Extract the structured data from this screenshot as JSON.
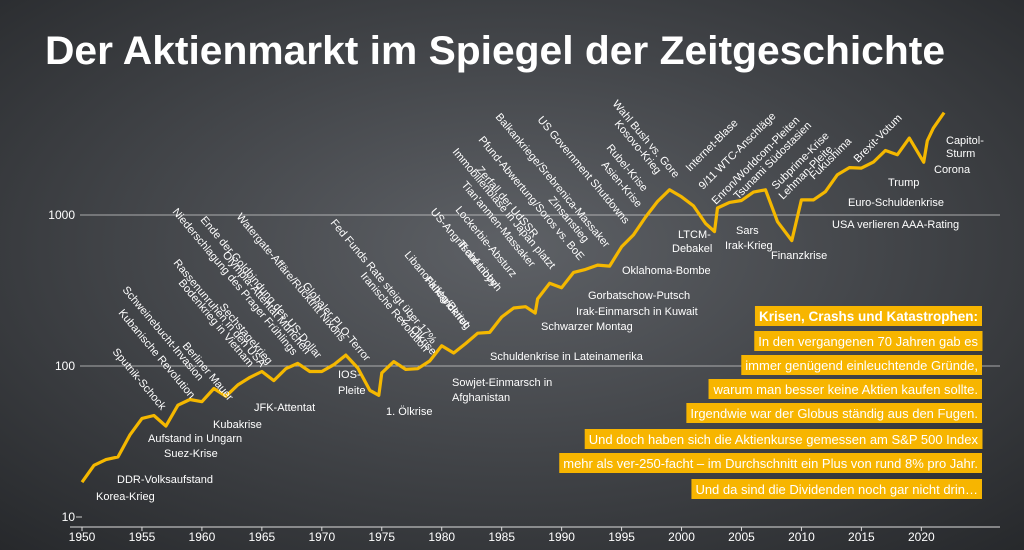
{
  "chart_data": {
    "type": "line",
    "title": "Der Aktienmarkt im Spiegel der Zeitgeschichte",
    "log_scale": true,
    "grid": true,
    "color": "#f5b800",
    "xlim": [
      1950,
      2024
    ],
    "xticks": [
      1950,
      1955,
      1960,
      1965,
      1970,
      1975,
      1980,
      1985,
      1990,
      1995,
      2000,
      2005,
      2010,
      2015,
      2020
    ],
    "ylim": [
      10,
      10000
    ],
    "yticks": [
      10,
      100,
      1000
    ],
    "x": [
      1950,
      1951,
      1952,
      1953,
      1954,
      1955,
      1956,
      1957,
      1958,
      1959,
      1960,
      1961,
      1962,
      1963,
      1964,
      1965,
      1966,
      1967,
      1968,
      1969,
      1970,
      1971,
      1972,
      1973,
      1974,
      1974.75,
      1975,
      1976,
      1977,
      1978,
      1979,
      1980,
      1981,
      1982,
      1983,
      1984,
      1985,
      1986,
      1987,
      1987.8,
      1988,
      1989,
      1990,
      1991,
      1992,
      1993,
      1994,
      1995,
      1996,
      1997,
      1998,
      1999,
      2000,
      2001,
      2002,
      2002.75,
      2003,
      2004,
      2005,
      2006,
      2007,
      2008,
      2009.2,
      2010,
      2011,
      2012,
      2013,
      2014,
      2015,
      2016,
      2017,
      2018,
      2019,
      2020.2,
      2020.5,
      2021,
      2021.9
    ],
    "values": [
      17,
      22,
      24,
      25,
      35,
      45,
      47,
      40,
      55,
      60,
      58,
      71,
      63,
      75,
      84,
      92,
      80,
      96,
      104,
      92,
      92,
      102,
      118,
      97,
      69,
      64,
      90,
      107,
      95,
      96,
      108,
      136,
      122,
      141,
      165,
      167,
      211,
      242,
      247,
      224,
      278,
      353,
      330,
      417,
      436,
      466,
      459,
      616,
      741,
      970,
      1229,
      1469,
      1320,
      1148,
      880,
      777,
      1112,
      1212,
      1248,
      1418,
      1468,
      903,
      677,
      1258,
      1258,
      1426,
      1848,
      2059,
      2044,
      2239,
      2674,
      2507,
      3231,
      2237,
      3100,
      3756,
      4766
    ],
    "annotations": [
      "Korea-Krieg",
      "DDR-Volksaufstand",
      "Suez-Krise",
      "Aufstand in Ungarn",
      "Kubakrise",
      "JFK-Attentat",
      "IOS-",
      "Pleite",
      "1. Ölkrise",
      "Sowjet-Einmarsch in",
      "Afghanistan",
      "Schuldenkrise in Lateinamerika",
      "Schwarzer Montag",
      "Irak-Einmarsch in Kuwait",
      "Gorbatschow-Putsch",
      "Oklahoma-Bombe",
      "LTCM-",
      "Debakel",
      "Sars",
      "Irak-Krieg",
      "Finanzkrise",
      "USA verlieren AAA-Rating",
      "Euro-Schuldenkrise",
      "Trump",
      "Corona",
      "Capitol-",
      "Sturm",
      "Sputnik-Schock",
      "Kubanische Revolution",
      "Schweinebucht-Invasion",
      "Berliner Mauer",
      "Rassenunruhen in den USA",
      "Bodenkrieg in Vietnam",
      "Niederschlagung des Prager Frühlings",
      "Sechstagekrieg",
      "Ende der Goldbindung des US-Dollar",
      "Olympia-Attentat München",
      "Watergate-Affäre/Rücktritt Nixons",
      "Globaler PLO-Terror",
      "Fed Funds Rate steigt über 17%",
      "Iranische Revolution",
      "2. Ölkrise",
      "Libanonkrieg/Beirut",
      "Falklandkrieg",
      "US-Angriff auf Libyen",
      "Tschernobyl",
      "Lockerbie-Absturz",
      "Tian'anmen-Massaker",
      "Immobilienblase in Japan platzt",
      "Zerfall der UdSSR",
      "Pfund-Abwertung/Soros vs. BoE",
      "Balkankriege/Srebrenica-Massaker",
      "Zinsanstieg",
      "US Government Shutdowns",
      "Asien-Krise",
      "Rubel-Krise",
      "Kosovo-Krieg",
      "Wahl Bush vs. Gore",
      "Internet-Blase",
      "9/11 WTC-Anschläge",
      "Enron/Worldcom-Pleiten",
      "Tsunami Südostasien",
      "Subprime-Krise",
      "Lehman-Pleite",
      "Fukushima",
      "Brexit-Votum"
    ],
    "info_box": {
      "title": "Krisen, Crashs und Katastrophen:",
      "lines": [
        "In den vergangenen 70 Jahren gab es",
        "immer genügend einleuchtende Gründe,",
        "warum man besser keine Aktien kaufen sollte.",
        "Irgendwie war der Globus ständig aus den Fugen.",
        "Und doch haben sich die Aktienkurse gemessen am S&P 500 Index",
        "mehr als ver-250-facht – im Durchschnitt ein Plus von rund 8% pro Jahr.",
        "Und da sind die Dividenden noch gar nicht drin…"
      ]
    }
  }
}
